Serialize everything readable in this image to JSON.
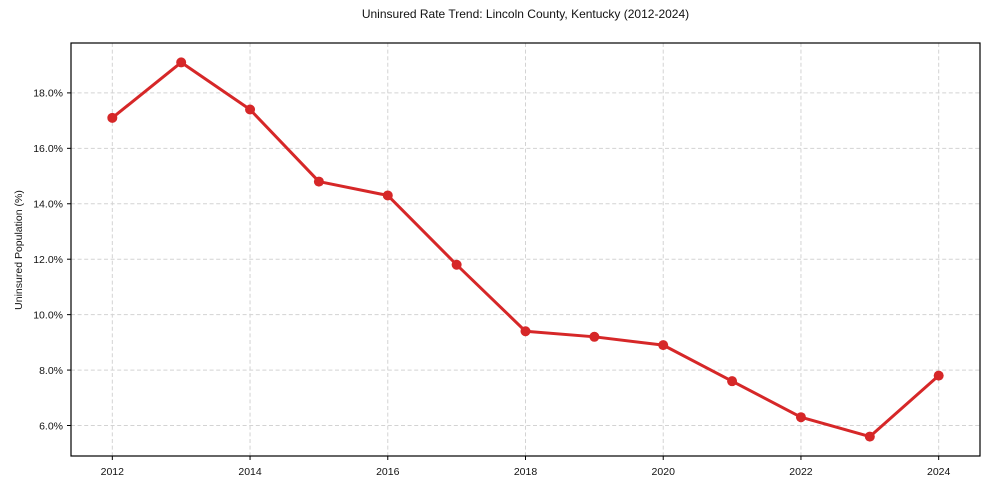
{
  "chart_data": {
    "type": "line",
    "title": "Uninsured Rate Trend: Lincoln County, Kentucky (2012-2024)",
    "xlabel": "",
    "ylabel": "Uninsured Population (%)",
    "x": [
      2012,
      2013,
      2014,
      2015,
      2016,
      2017,
      2018,
      2019,
      2020,
      2021,
      2022,
      2023,
      2024
    ],
    "values": [
      17.1,
      19.1,
      17.4,
      14.8,
      14.3,
      11.8,
      9.4,
      9.2,
      8.9,
      7.6,
      6.3,
      5.6,
      7.8
    ],
    "xlim": [
      2011.4,
      2024.6
    ],
    "ylim": [
      4.9,
      19.8
    ],
    "xticks": [
      2012,
      2014,
      2016,
      2018,
      2020,
      2022,
      2024
    ],
    "xtick_labels": [
      "2012",
      "2014",
      "2016",
      "2018",
      "2020",
      "2022",
      "2024"
    ],
    "yticks": [
      6,
      8,
      10,
      12,
      14,
      16,
      18
    ],
    "ytick_labels": [
      "6.0%",
      "8.0%",
      "10.0%",
      "12.0%",
      "14.0%",
      "16.0%",
      "18.0%"
    ],
    "grid": true,
    "grid_style": "dashed",
    "legend": null,
    "line_color": "#d62728",
    "marker": "circle",
    "grid_color": "#d3d3d3",
    "axis_color": "#000000",
    "background_color": "#ffffff"
  }
}
